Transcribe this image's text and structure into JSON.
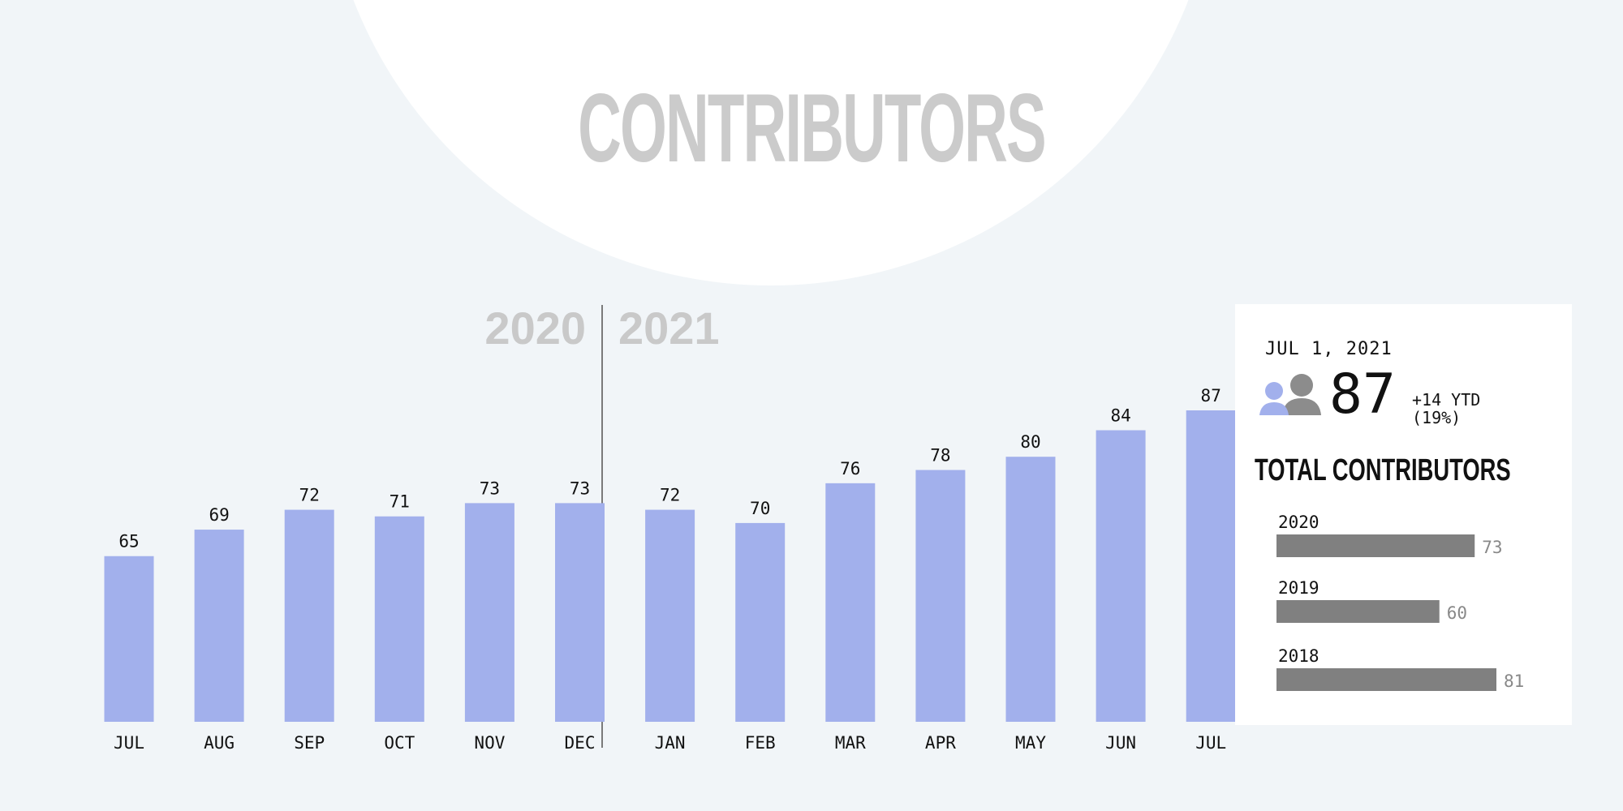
{
  "title": "CONTRIBUTORS",
  "colors": {
    "bar": "#a2b0ec",
    "background": "#f1f5f8",
    "year_bar": "#808080",
    "divider": "#7a7a7a",
    "icon_front": "#a2b0ec",
    "icon_back": "#8c8c8c"
  },
  "year_markers": {
    "left": "2020",
    "right": "2021"
  },
  "chart_data": [
    {
      "type": "bar",
      "categories": [
        "JUL",
        "AUG",
        "SEP",
        "OCT",
        "NOV",
        "DEC",
        "JAN",
        "FEB",
        "MAR",
        "APR",
        "MAY",
        "JUN",
        "JUL"
      ],
      "values": [
        65,
        69,
        72,
        71,
        73,
        73,
        72,
        70,
        76,
        78,
        80,
        84,
        87
      ],
      "xlabel": "",
      "ylabel": "",
      "ylim": [
        40,
        87
      ],
      "grid": false,
      "period_split_after_index": 5
    },
    {
      "type": "bar",
      "orientation": "horizontal",
      "title": "TOTAL CONTRIBUTORS",
      "categories": [
        "2020",
        "2019",
        "2018"
      ],
      "values": [
        73,
        60,
        81
      ],
      "xlim": [
        0,
        81
      ]
    }
  ],
  "panel": {
    "date": "JUL 1, 2021",
    "count": "87",
    "change_line1": "+14 YTD",
    "change_line2": "(19%)",
    "icon": "users-icon"
  }
}
